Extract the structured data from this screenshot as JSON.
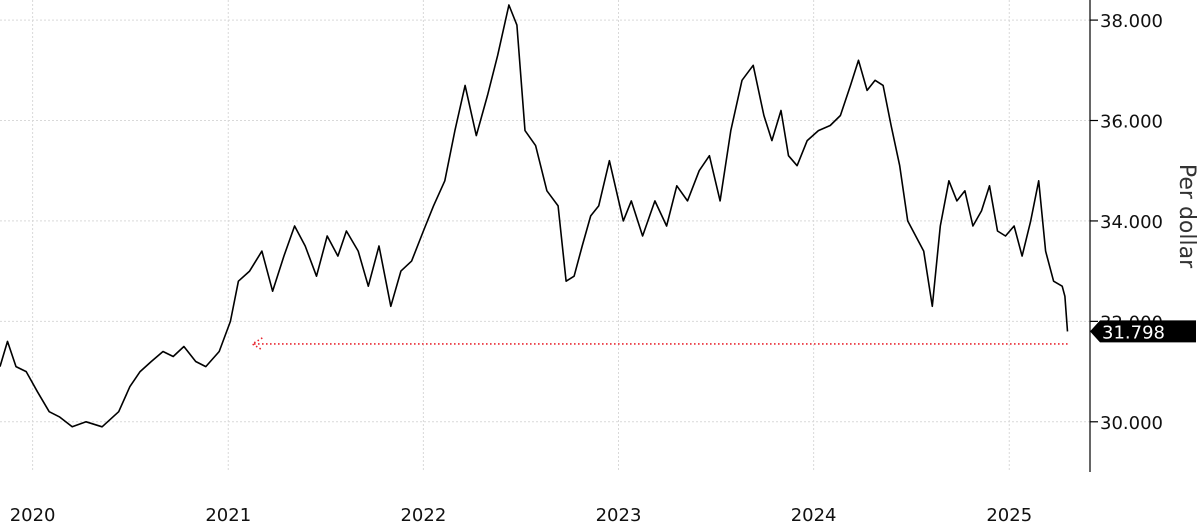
{
  "chart_data": {
    "type": "line",
    "ylabel": "Per dollar",
    "ylim": [
      29.0,
      38.4
    ],
    "yticks": [
      30,
      32,
      34,
      36,
      38
    ],
    "ytick_labels": [
      "30.000",
      "32.000",
      "34.000",
      "36.000",
      "38.000"
    ],
    "xlim": [
      "2019-11-01",
      "2025-06-01"
    ],
    "xticks": [
      "2020-01-01",
      "2021-01-01",
      "2022-01-01",
      "2023-01-01",
      "2024-01-01",
      "2025-01-01"
    ],
    "xtick_labels": [
      "2020",
      "2021",
      "2022",
      "2023",
      "2024",
      "2025"
    ],
    "last_value_label": "31.798",
    "reference_line": {
      "value": 31.55,
      "from": "2021-02-15",
      "to": "2025-04-20",
      "color": "#e8202a"
    },
    "series": [
      {
        "color": "#000000",
        "x": [
          "2019-11-01",
          "2019-11-15",
          "2019-12-01",
          "2019-12-20",
          "2020-01-10",
          "2020-02-01",
          "2020-02-20",
          "2020-03-15",
          "2020-04-10",
          "2020-05-10",
          "2020-06-10",
          "2020-07-01",
          "2020-07-20",
          "2020-08-10",
          "2020-09-01",
          "2020-09-20",
          "2020-10-10",
          "2020-11-01",
          "2020-11-20",
          "2020-12-15",
          "2021-01-05",
          "2021-01-20",
          "2021-02-10",
          "2021-03-05",
          "2021-03-25",
          "2021-04-15",
          "2021-05-05",
          "2021-05-25",
          "2021-06-15",
          "2021-07-05",
          "2021-07-25",
          "2021-08-10",
          "2021-09-01",
          "2021-09-20",
          "2021-10-10",
          "2021-11-01",
          "2021-11-20",
          "2021-12-10",
          "2022-01-01",
          "2022-01-20",
          "2022-02-10",
          "2022-03-01",
          "2022-03-20",
          "2022-04-10",
          "2022-05-01",
          "2022-05-20",
          "2022-06-10",
          "2022-06-25",
          "2022-07-10",
          "2022-07-30",
          "2022-08-20",
          "2022-09-10",
          "2022-09-25",
          "2022-10-10",
          "2022-10-25",
          "2022-11-10",
          "2022-11-25",
          "2022-12-15",
          "2023-01-10",
          "2023-01-25",
          "2023-02-15",
          "2023-03-10",
          "2023-04-01",
          "2023-04-20",
          "2023-05-10",
          "2023-06-01",
          "2023-06-20",
          "2023-07-10",
          "2023-07-30",
          "2023-08-20",
          "2023-09-10",
          "2023-09-30",
          "2023-10-15",
          "2023-11-01",
          "2023-11-15",
          "2023-12-01",
          "2023-12-20",
          "2024-01-10",
          "2024-02-01",
          "2024-02-20",
          "2024-03-10",
          "2024-03-25",
          "2024-04-10",
          "2024-04-25",
          "2024-05-10",
          "2024-05-25",
          "2024-06-10",
          "2024-06-25",
          "2024-07-10",
          "2024-07-25",
          "2024-08-10",
          "2024-08-25",
          "2024-09-10",
          "2024-09-25",
          "2024-10-10",
          "2024-10-25",
          "2024-11-10",
          "2024-11-25",
          "2024-12-10",
          "2024-12-25",
          "2025-01-10",
          "2025-01-25",
          "2025-02-10",
          "2025-02-25",
          "2025-03-10",
          "2025-03-25",
          "2025-04-10",
          "2025-04-15",
          "2025-04-20"
        ],
        "y": [
          31.1,
          31.6,
          31.1,
          31.0,
          30.6,
          30.2,
          30.1,
          29.9,
          30.0,
          29.9,
          30.2,
          30.7,
          31.0,
          31.2,
          31.4,
          31.3,
          31.5,
          31.2,
          31.1,
          31.4,
          32.0,
          32.8,
          33.0,
          33.4,
          32.6,
          33.3,
          33.9,
          33.5,
          32.9,
          33.7,
          33.3,
          33.8,
          33.4,
          32.7,
          33.5,
          32.3,
          33.0,
          33.2,
          33.8,
          34.3,
          34.8,
          35.8,
          36.7,
          35.7,
          36.5,
          37.3,
          38.3,
          37.9,
          35.8,
          35.5,
          34.6,
          34.3,
          32.8,
          32.9,
          33.5,
          34.1,
          34.3,
          35.2,
          34.0,
          34.4,
          33.7,
          34.4,
          33.9,
          34.7,
          34.4,
          35.0,
          35.3,
          34.4,
          35.8,
          36.8,
          37.1,
          36.1,
          35.6,
          36.2,
          35.3,
          35.1,
          35.6,
          35.8,
          35.9,
          36.1,
          36.7,
          37.2,
          36.6,
          36.8,
          36.7,
          35.9,
          35.1,
          34.0,
          33.7,
          33.4,
          32.3,
          33.9,
          34.8,
          34.4,
          34.6,
          33.9,
          34.2,
          34.7,
          33.8,
          33.7,
          33.9,
          33.3,
          34.0,
          34.8,
          33.4,
          32.8,
          32.7,
          32.5,
          31.8
        ]
      }
    ]
  }
}
